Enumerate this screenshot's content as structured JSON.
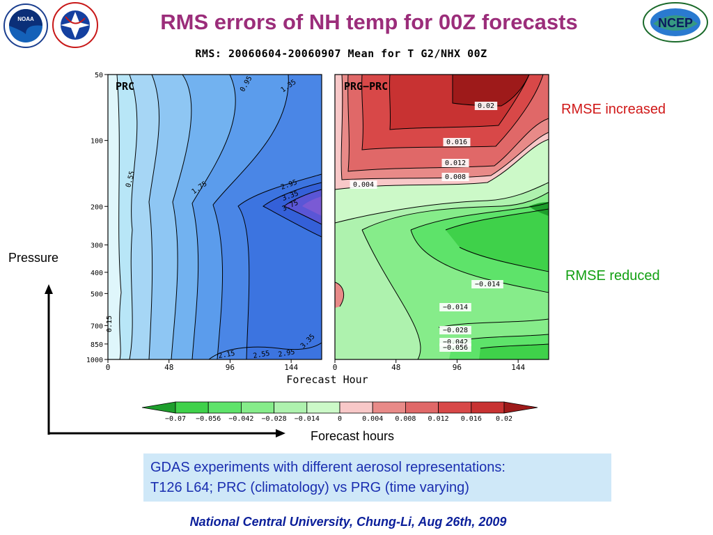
{
  "slide": {
    "title": "RMS errors of NH temp for 00Z forecasts",
    "plot_header": "RMS: 20060604-20060907 Mean for T G2/NHX 00Z",
    "note_increased": "RMSE increased",
    "note_reduced": "RMSE reduced",
    "axis_arrow_y_label": "Pressure",
    "axis_arrow_x_label": "Forecast hours",
    "info_line1": "GDAS experiments with different aerosol representations:",
    "info_line2": "T126 L64; PRC (climatology) vs PRG (time varying)",
    "footer": "National Central University, Chung-Li, Aug 26th, 2009",
    "logo_noaa": "NOAA",
    "logo_nws": "NATIONAL WEATHER SERVICE",
    "logo_ncep": "NCEP"
  },
  "colors": {
    "title": "#9b2d7a",
    "increased": "#d01818",
    "reduced": "#12a012",
    "info_bg": "#cfe8f8",
    "info_text": "#1a2eb0",
    "footer": "#0a1e9a"
  },
  "chart_data": [
    {
      "type": "heatmap",
      "panel_label": "PRC",
      "xlabel": "Forecast Hour",
      "x_ticks": [
        0,
        48,
        96,
        144
      ],
      "xlim": [
        0,
        168
      ],
      "y_ticks": [
        50,
        100,
        200,
        300,
        400,
        500,
        700,
        850,
        1000
      ],
      "ylim": [
        1000,
        50
      ],
      "y_scale": "log",
      "contour_labels": [
        "0.15",
        "0.55",
        "0.95",
        "1.35",
        "1.75",
        "2.15",
        "2.55",
        "2.95",
        "3.35",
        "3.75"
      ],
      "colormap": "blues",
      "max_region": "near 200 hPa at long forecast hours"
    },
    {
      "type": "heatmap",
      "panel_label": "PRG−PRC",
      "xlabel": "",
      "x_ticks": [
        0,
        48,
        96,
        144
      ],
      "xlim": [
        0,
        168
      ],
      "y_scale": "log",
      "contour_labels": [
        "0.02",
        "0.016",
        "0.012",
        "0.008",
        "0.004",
        "−0.014",
        "−0.014",
        "−0.028",
        "−0.042",
        "−0.056"
      ],
      "colormap": "green-red diverging",
      "colorbar": {
        "ticks": [
          "−0.07",
          "−0.056",
          "−0.042",
          "−0.028",
          "−0.014",
          "0",
          "0.004",
          "0.008",
          "0.012",
          "0.016",
          "0.02"
        ],
        "colors": [
          "#1e9e2c",
          "#3fd14a",
          "#5ee36a",
          "#86ec8a",
          "#aef2ae",
          "#ccf9c8",
          "#f8c8c8",
          "#e88a88",
          "#e06868",
          "#d84848",
          "#c83232",
          "#9e1a1a"
        ]
      }
    }
  ]
}
